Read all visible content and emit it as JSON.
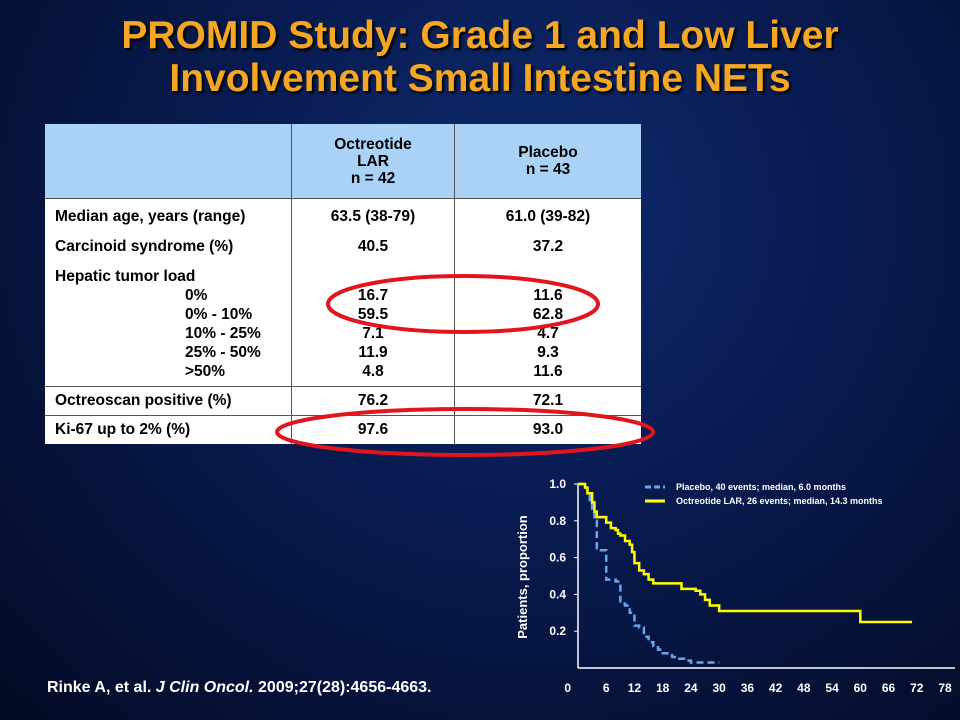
{
  "title": {
    "line1": "PROMID Study: Grade 1 and Low Liver",
    "line2": "Involvement Small Intestine NETs"
  },
  "table": {
    "header": {
      "col1": [
        "Octreotide",
        "LAR",
        "n = 42"
      ],
      "col2": [
        "Placebo",
        "n = 43"
      ]
    },
    "rows": {
      "median_age": {
        "label": "Median age, years (range)",
        "oct": "63.5 (38-79)",
        "pla": "61.0 (39-82)"
      },
      "carcinoid": {
        "label": "Carcinoid syndrome (%)",
        "oct": "40.5",
        "pla": "37.2"
      },
      "hepatic": {
        "label": "Hepatic tumor load",
        "sub": [
          {
            "label": "0%",
            "oct": "16.7",
            "pla": "11.6"
          },
          {
            "label": "0% - 10%",
            "oct": "59.5",
            "pla": "62.8"
          },
          {
            "label": "10% - 25%",
            "oct": "7.1",
            "pla": "4.7"
          },
          {
            "label": "25% - 50%",
            "oct": "11.9",
            "pla": "9.3"
          },
          {
            "label": ">50%",
            "oct": "4.8",
            "pla": "11.6"
          }
        ]
      },
      "octreoscan": {
        "label": "Octreoscan positive (%)",
        "oct": "76.2",
        "pla": "72.1"
      },
      "ki67": {
        "label": "Ki-67 up to 2% (%)",
        "oct": "97.6",
        "pla": "93.0"
      }
    }
  },
  "colors": {
    "title": "#f5a623",
    "highlight": "#e0161c",
    "placebo": "#6aa4ea",
    "octreotide": "#ffff00"
  },
  "citation": {
    "authors": "Rinke A, et al.",
    "journal": "J Clin Oncol.",
    "ref": "2009;27(28):4656-4663."
  },
  "chart_data": {
    "type": "line",
    "ylabel": "Patients, proportion",
    "xlabel": "",
    "xlim": [
      0,
      78
    ],
    "ylim": [
      0,
      1.0
    ],
    "xticks": [
      "0",
      "6",
      "12",
      "18",
      "24",
      "30",
      "36",
      "42",
      "48",
      "54",
      "60",
      "66",
      "72",
      "78"
    ],
    "yticks": [
      "0.2",
      "0.4",
      "0.6",
      "0.8",
      "1.0"
    ],
    "legend_position": "top-right",
    "series": [
      {
        "name": "Placebo, 40 events; median, 6.0 months",
        "style": "dashed",
        "color": "#6aa4ea",
        "x": [
          0,
          1.5,
          2,
          2.5,
          3,
          3.5,
          4,
          4.5,
          5,
          6,
          7,
          8,
          9,
          10,
          11,
          12,
          13,
          14,
          15,
          16,
          17,
          18,
          19,
          20,
          21,
          22,
          23,
          24,
          26,
          30
        ],
        "y": [
          1.0,
          0.98,
          0.95,
          0.9,
          0.85,
          0.8,
          0.65,
          0.64,
          0.64,
          0.48,
          0.48,
          0.47,
          0.35,
          0.34,
          0.3,
          0.23,
          0.22,
          0.17,
          0.14,
          0.12,
          0.1,
          0.08,
          0.07,
          0.06,
          0.05,
          0.05,
          0.04,
          0.03,
          0.03,
          0.03
        ]
      },
      {
        "name": "Octreotide LAR, 26 events; median, 14.3 months",
        "style": "solid",
        "color": "#ffff00",
        "x": [
          0,
          1.5,
          2,
          3,
          3.5,
          4,
          5,
          6,
          7,
          8,
          8.5,
          9,
          10,
          11,
          11.5,
          12,
          13,
          14,
          15,
          16,
          17,
          22,
          24,
          25,
          26,
          27,
          28,
          30,
          33,
          39,
          48,
          57,
          58,
          60,
          66,
          70,
          71
        ],
        "y": [
          1.0,
          0.98,
          0.95,
          0.9,
          0.85,
          0.82,
          0.82,
          0.79,
          0.76,
          0.75,
          0.73,
          0.72,
          0.69,
          0.67,
          0.63,
          0.57,
          0.53,
          0.51,
          0.48,
          0.46,
          0.46,
          0.43,
          0.43,
          0.42,
          0.4,
          0.37,
          0.34,
          0.31,
          0.31,
          0.31,
          0.31,
          0.31,
          0.31,
          0.25,
          0.25,
          0.25,
          0.25
        ]
      }
    ]
  }
}
